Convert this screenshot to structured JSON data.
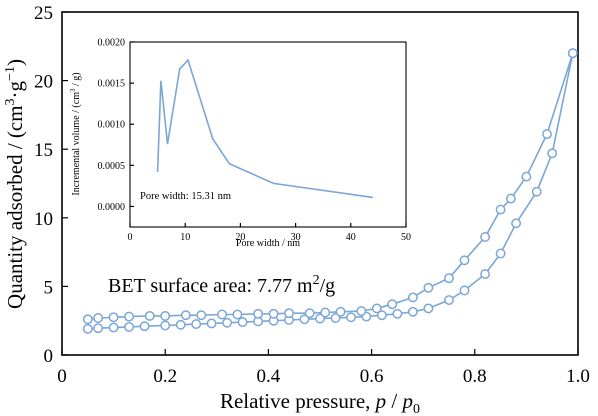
{
  "chart_data": [
    {
      "type": "line",
      "title": "",
      "xlabel_main": "Relative pressure, ",
      "xlabel_var": "p",
      "xlabel_sep": " / ",
      "xlabel_var2": "p",
      "xlabel_sub": "0",
      "ylabel_main": "Quantity adsorbed / (cm",
      "ylabel_sup1": "3",
      "ylabel_mid": "·g",
      "ylabel_sup2": "−1",
      "ylabel_end": ")",
      "xlim": [
        0,
        1.0
      ],
      "ylim": [
        0,
        25
      ],
      "xticks": [
        0,
        0.2,
        0.4,
        0.6,
        0.8,
        1.0
      ],
      "xtick_labels": [
        "0",
        "0.2",
        "0.4",
        "0.6",
        "0.8",
        "1.0"
      ],
      "yticks": [
        0,
        5,
        10,
        15,
        20,
        25
      ],
      "ytick_labels": [
        "0",
        "5",
        "10",
        "15",
        "20",
        "25"
      ],
      "grid": false,
      "annotation_text": "BET surface area: 7.77 m",
      "annotation_sup": "2",
      "annotation_end": "/g",
      "series": [
        {
          "marker": "open-circle",
          "color": "#7aa6d8",
          "x": [
            0.05,
            0.07,
            0.1,
            0.13,
            0.16,
            0.2,
            0.23,
            0.26,
            0.29,
            0.32,
            0.35,
            0.38,
            0.41,
            0.44,
            0.47,
            0.5,
            0.53,
            0.56,
            0.59,
            0.62,
            0.65,
            0.68,
            0.71,
            0.75,
            0.78,
            0.82,
            0.85,
            0.88,
            0.92,
            0.95,
            0.99
          ],
          "values": [
            1.9,
            1.95,
            2.0,
            2.05,
            2.1,
            2.15,
            2.2,
            2.25,
            2.3,
            2.35,
            2.4,
            2.45,
            2.5,
            2.55,
            2.6,
            2.65,
            2.7,
            2.75,
            2.8,
            2.9,
            3.0,
            3.15,
            3.4,
            4.0,
            4.7,
            5.9,
            7.4,
            9.6,
            11.9,
            14.7,
            22.0
          ]
        },
        {
          "marker": "open-circle",
          "color": "#7aa6d8",
          "x": [
            0.05,
            0.07,
            0.1,
            0.13,
            0.17,
            0.2,
            0.24,
            0.27,
            0.31,
            0.34,
            0.38,
            0.41,
            0.44,
            0.48,
            0.51,
            0.54,
            0.58,
            0.61,
            0.64,
            0.68,
            0.71,
            0.75,
            0.78,
            0.82,
            0.85,
            0.87,
            0.9,
            0.94,
            0.99
          ],
          "values": [
            2.6,
            2.7,
            2.75,
            2.8,
            2.85,
            2.85,
            2.9,
            2.9,
            2.95,
            2.95,
            3.0,
            3.0,
            3.05,
            3.05,
            3.1,
            3.15,
            3.2,
            3.4,
            3.7,
            4.2,
            4.9,
            5.6,
            6.9,
            8.6,
            10.6,
            11.4,
            13.0,
            16.1,
            22.0
          ]
        }
      ]
    },
    {
      "type": "line",
      "title": "",
      "xlabel": "Pore width / nm",
      "ylabel_main": "Incremental volume / (cm",
      "ylabel_sup": "3",
      "ylabel_end": " / g)",
      "xlim": [
        0,
        50
      ],
      "ylim": [
        -0.00025,
        0.002
      ],
      "xticks": [
        0,
        10,
        20,
        30,
        40,
        50
      ],
      "xtick_labels": [
        "0",
        "10",
        "20",
        "30",
        "40",
        "50"
      ],
      "yticks": [
        0,
        0.0005,
        0.001,
        0.0015,
        0.002
      ],
      "ytick_labels": [
        "0.0000",
        "0.0005",
        "0.0010",
        "0.0015",
        "0.0020"
      ],
      "grid": false,
      "annotation_text": "Pore width: 15.31 nm",
      "series": [
        {
          "color": "#7aa6d8",
          "x": [
            5.0,
            5.6,
            6.8,
            9.0,
            10.5,
            15.0,
            18.0,
            26.0,
            44.0
          ],
          "values": [
            0.00042,
            0.00153,
            0.00076,
            0.00167,
            0.00178,
            0.00082,
            0.00052,
            0.00028,
            0.00011
          ]
        }
      ]
    }
  ]
}
